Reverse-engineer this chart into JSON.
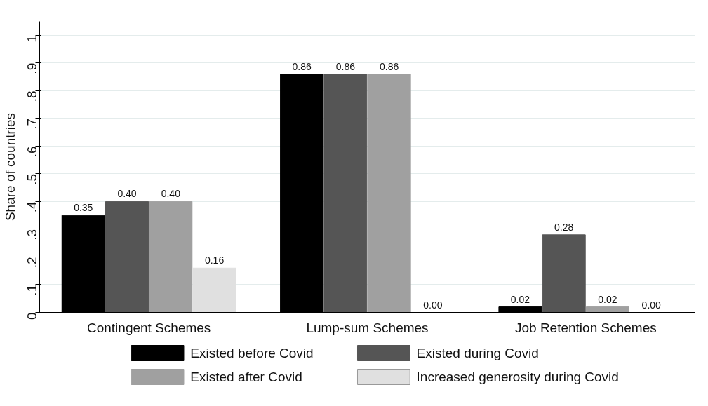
{
  "chart_data": {
    "type": "bar",
    "ylabel": "Share of countries",
    "categories": [
      "Contingent Schemes",
      "Lump-sum Schemes",
      "Job Retention Schemes"
    ],
    "series": [
      {
        "name": "Existed before Covid",
        "color": "#000000",
        "values": [
          0.35,
          0.86,
          0.02
        ],
        "value_labels": [
          "0.35",
          "0.86",
          "0.02"
        ]
      },
      {
        "name": "Existed during Covid",
        "color": "#555555",
        "values": [
          0.4,
          0.86,
          0.28
        ],
        "value_labels": [
          "0.40",
          "0.86",
          "0.28"
        ]
      },
      {
        "name": "Existed after Covid",
        "color": "#a0a0a0",
        "values": [
          0.4,
          0.86,
          0.02
        ],
        "value_labels": [
          "0.40",
          "0.86",
          "0.02"
        ]
      },
      {
        "name": "Increased generosity during Covid",
        "color": "#e0e0e0",
        "values": [
          0.16,
          0.0,
          0.0
        ],
        "value_labels": [
          "0.16",
          "0.00",
          "0.00"
        ]
      }
    ],
    "ylim": [
      0,
      1.05
    ],
    "yticks": [
      {
        "value": 0,
        "label": "0"
      },
      {
        "value": 0.1,
        "label": ".1"
      },
      {
        "value": 0.2,
        "label": ".2"
      },
      {
        "value": 0.3,
        "label": ".3"
      },
      {
        "value": 0.4,
        "label": ".4"
      },
      {
        "value": 0.5,
        "label": ".5"
      },
      {
        "value": 0.6,
        "label": ".6"
      },
      {
        "value": 0.7,
        "label": ".7"
      },
      {
        "value": 0.8,
        "label": ".8"
      },
      {
        "value": 0.9,
        "label": ".9"
      },
      {
        "value": 1,
        "label": "1"
      }
    ],
    "grid": "y",
    "legend": "bottom"
  }
}
